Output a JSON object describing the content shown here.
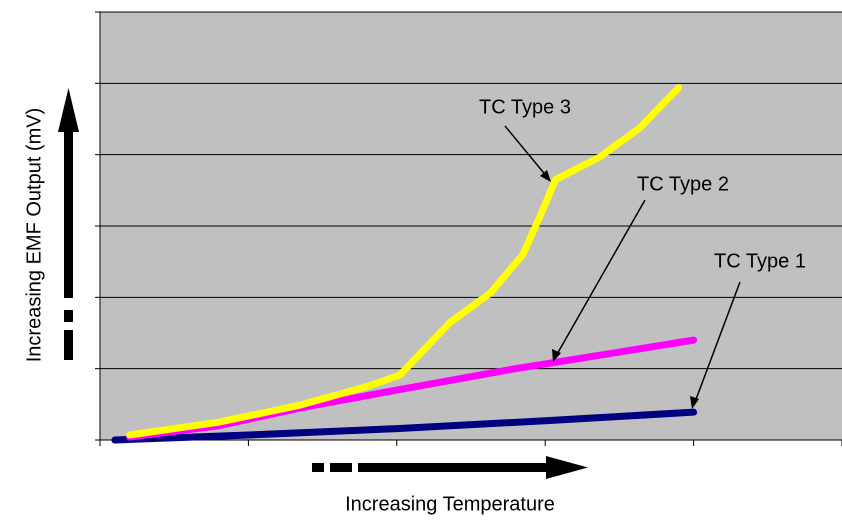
{
  "chart_data": {
    "type": "line",
    "y_label": "Increasing EMF Output (mV)",
    "x_label": "Increasing Temperature",
    "xlim": [
      0,
      5
    ],
    "xticks": [
      0,
      1,
      2,
      3,
      4,
      5
    ],
    "ylim": [
      0,
      6
    ],
    "yticks": [
      0,
      1,
      2,
      3,
      4,
      5,
      6
    ],
    "grid": true,
    "series": [
      {
        "name": "TC Type 1",
        "color": "#000080",
        "x": [
          0.1,
          1.0,
          2.0,
          3.0,
          4.0
        ],
        "values": [
          0.0,
          0.07,
          0.16,
          0.27,
          0.39
        ]
      },
      {
        "name": "TC Type 2",
        "color": "#ff00ff",
        "x": [
          0.2,
          0.8,
          1.35,
          2.0,
          2.8,
          3.4,
          4.0
        ],
        "values": [
          0.04,
          0.2,
          0.45,
          0.7,
          1.0,
          1.2,
          1.4
        ]
      },
      {
        "name": "TC Type 3",
        "color": "#ffff00",
        "x": [
          0.2,
          0.8,
          1.35,
          1.8,
          2.02,
          2.36,
          2.63,
          2.85,
          2.97,
          3.07,
          3.37,
          3.64,
          3.9
        ],
        "values": [
          0.07,
          0.25,
          0.49,
          0.75,
          0.91,
          1.65,
          2.06,
          2.6,
          3.16,
          3.65,
          3.97,
          4.38,
          4.94
        ]
      }
    ]
  }
}
